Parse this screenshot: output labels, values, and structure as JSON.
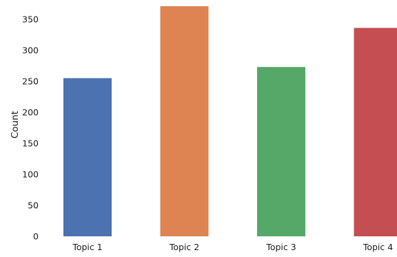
{
  "chart_data": {
    "type": "bar",
    "categories": [
      "Topic 1",
      "Topic 2",
      "Topic 3",
      "Topic 4"
    ],
    "values": [
      255,
      371,
      273,
      336
    ],
    "colors": [
      "#4C72B0",
      "#DD8452",
      "#55A868",
      "#C44E52"
    ],
    "title": "",
    "xlabel": "",
    "ylabel": "Count",
    "ylim": [
      0,
      371
    ],
    "yticks": [
      0,
      50,
      100,
      150,
      200,
      250,
      300,
      350
    ],
    "grid": false,
    "legend": "none"
  }
}
